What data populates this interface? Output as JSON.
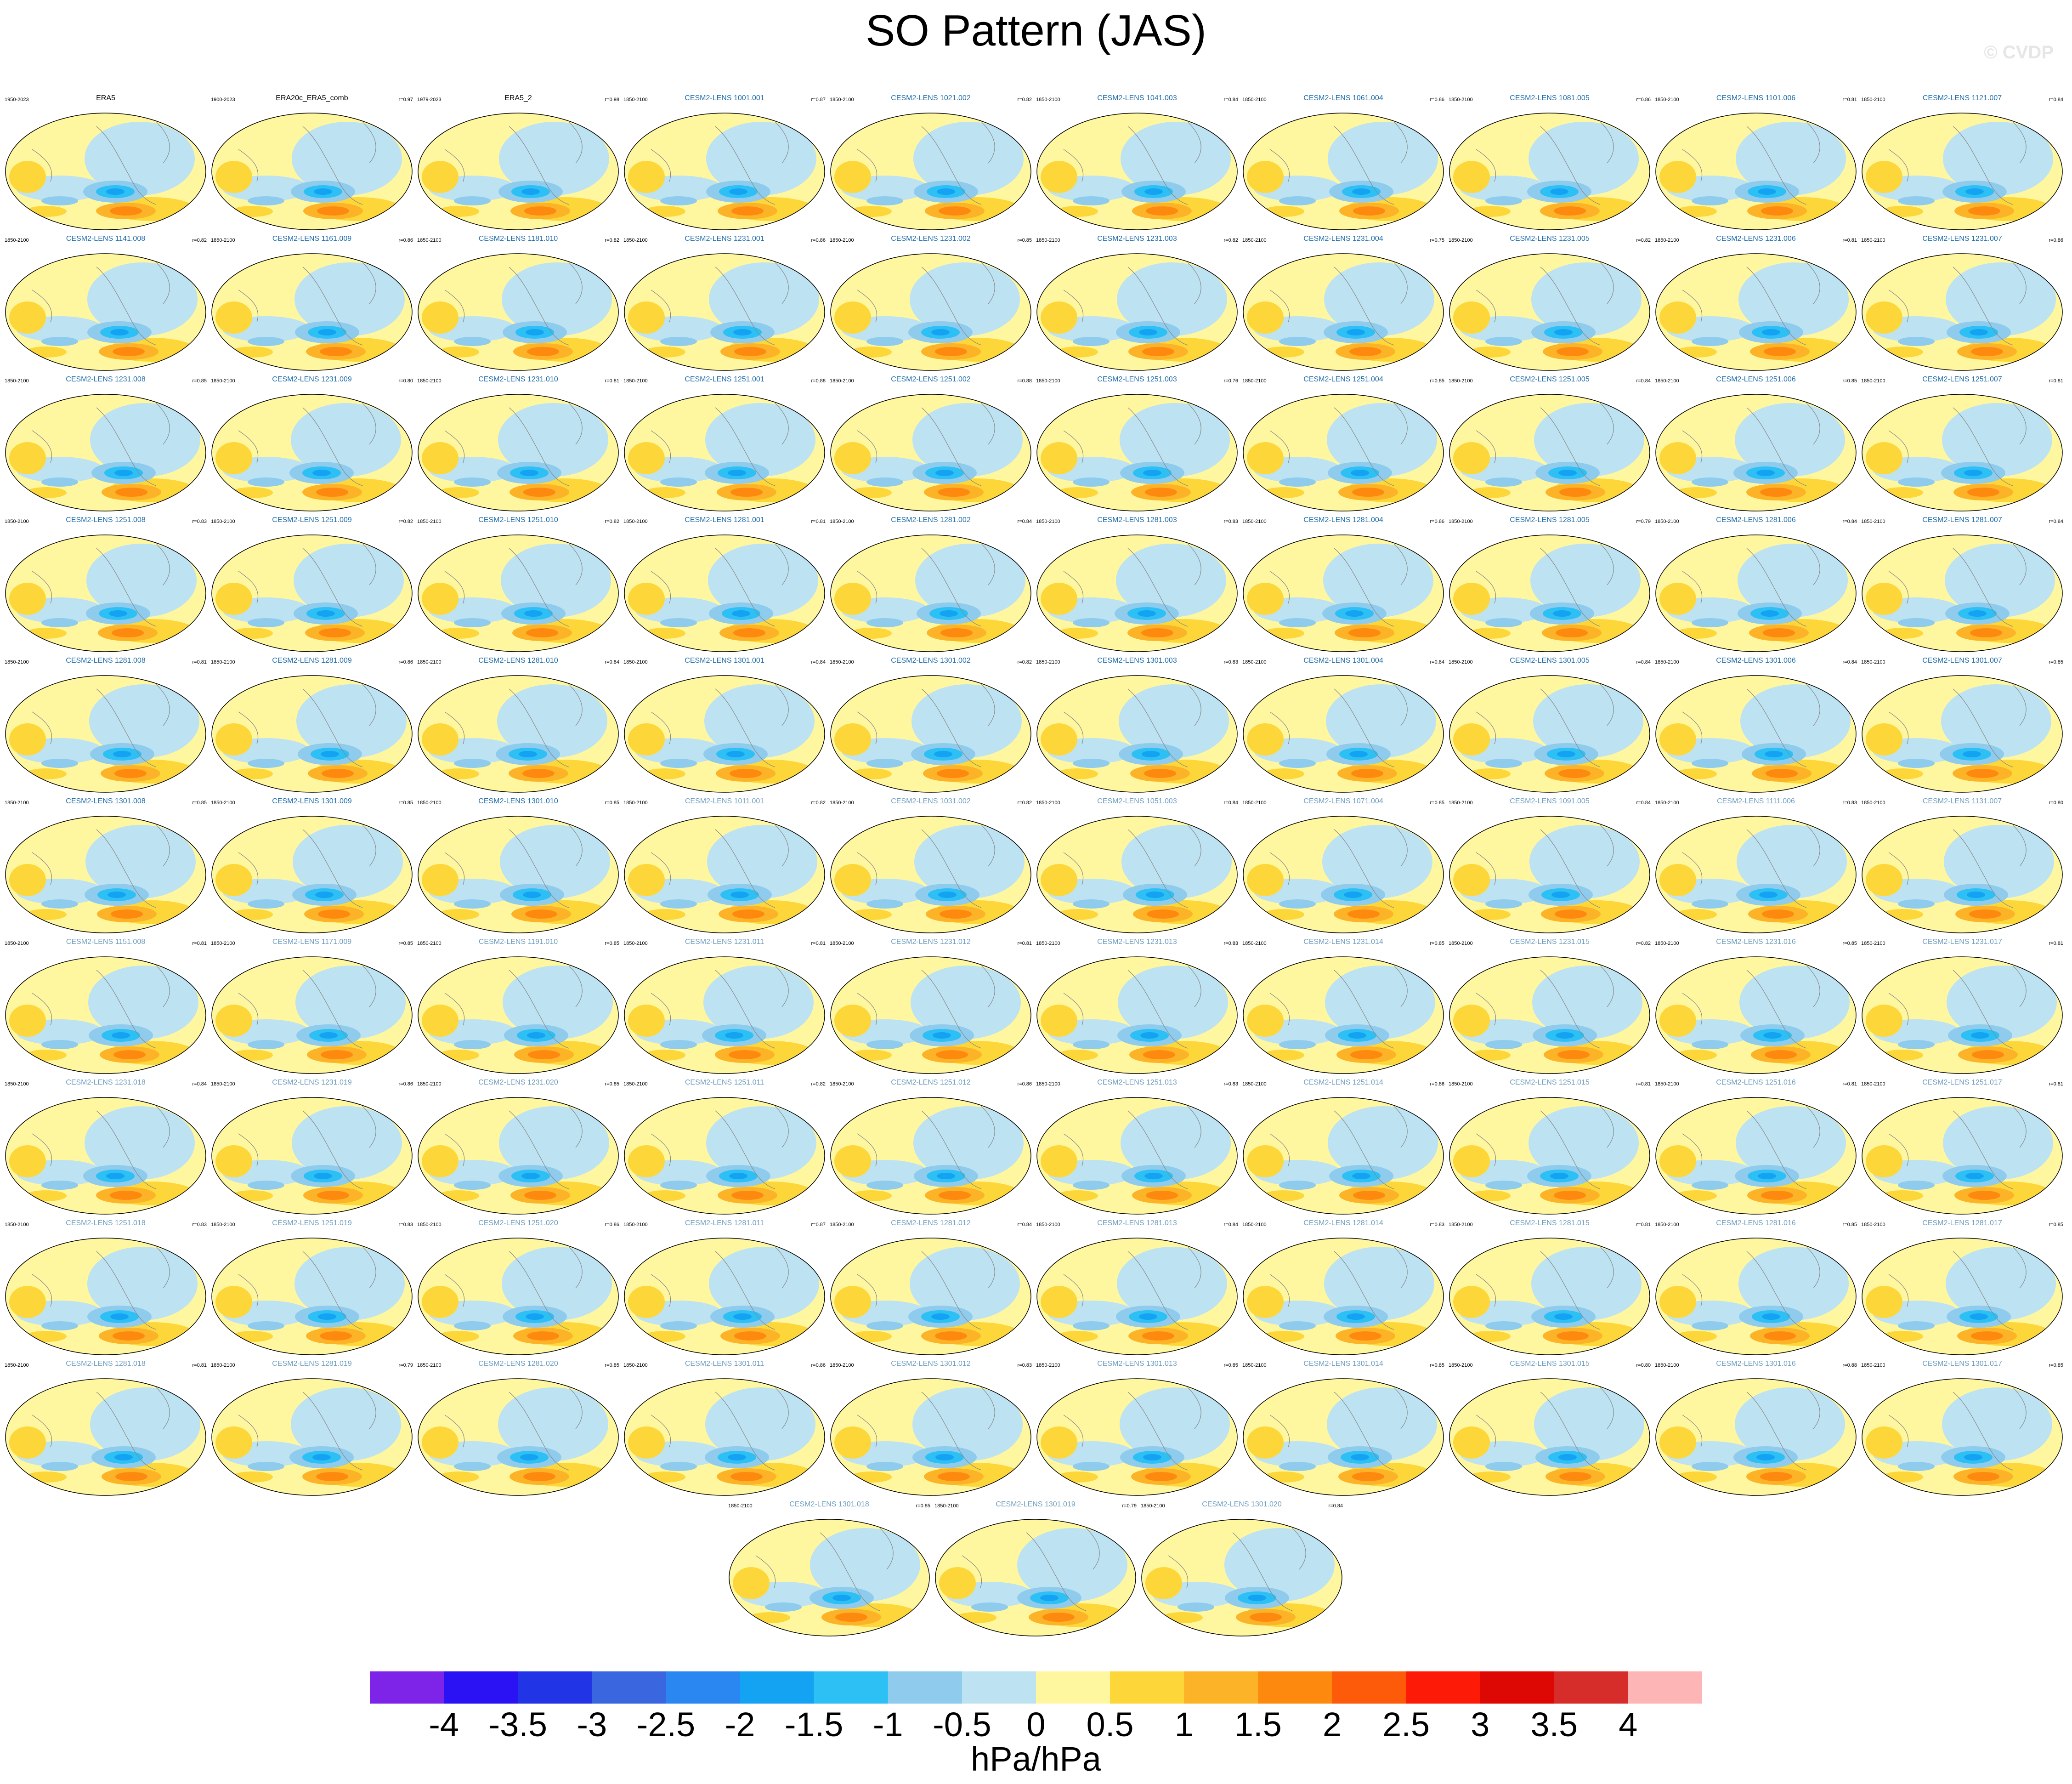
{
  "title": "SO Pattern (JAS)",
  "watermark": "© CVDP",
  "chart_data": {
    "type": "heatmap",
    "variable": "SO Pattern (JAS)",
    "units": "hPa/hPa",
    "panels": [
      {
        "name": "ERA5",
        "period": "1950-2023",
        "r": "",
        "style": "obs"
      },
      {
        "name": "ERA20c_ERA5_comb",
        "period": "1900-2023",
        "r": "r=0.97",
        "style": "obs"
      },
      {
        "name": "ERA5_2",
        "period": "1979-2023",
        "r": "r=0.98",
        "style": "obs"
      },
      {
        "name": "CESM2-LENS 1001.001",
        "period": "1850-2100",
        "r": "r=0.87",
        "style": "ens"
      },
      {
        "name": "CESM2-LENS 1021.002",
        "period": "1850-2100",
        "r": "r=0.82",
        "style": "ens"
      },
      {
        "name": "CESM2-LENS 1041.003",
        "period": "1850-2100",
        "r": "r=0.84",
        "style": "ens"
      },
      {
        "name": "CESM2-LENS 1061.004",
        "period": "1850-2100",
        "r": "r=0.86",
        "style": "ens"
      },
      {
        "name": "CESM2-LENS 1081.005",
        "period": "1850-2100",
        "r": "r=0.86",
        "style": "ens"
      },
      {
        "name": "CESM2-LENS 1101.006",
        "period": "1850-2100",
        "r": "r=0.81",
        "style": "ens"
      },
      {
        "name": "CESM2-LENS 1121.007",
        "period": "1850-2100",
        "r": "r=0.84",
        "style": "ens"
      },
      {
        "name": "CESM2-LENS 1141.008",
        "period": "1850-2100",
        "r": "r=0.82",
        "style": "ens"
      },
      {
        "name": "CESM2-LENS 1161.009",
        "period": "1850-2100",
        "r": "r=0.86",
        "style": "ens"
      },
      {
        "name": "CESM2-LENS 1181.010",
        "period": "1850-2100",
        "r": "r=0.82",
        "style": "ens"
      },
      {
        "name": "CESM2-LENS 1231.001",
        "period": "1850-2100",
        "r": "r=0.86",
        "style": "ens"
      },
      {
        "name": "CESM2-LENS 1231.002",
        "period": "1850-2100",
        "r": "r=0.85",
        "style": "ens"
      },
      {
        "name": "CESM2-LENS 1231.003",
        "period": "1850-2100",
        "r": "r=0.82",
        "style": "ens"
      },
      {
        "name": "CESM2-LENS 1231.004",
        "period": "1850-2100",
        "r": "r=0.75",
        "style": "ens"
      },
      {
        "name": "CESM2-LENS 1231.005",
        "period": "1850-2100",
        "r": "r=0.82",
        "style": "ens"
      },
      {
        "name": "CESM2-LENS 1231.006",
        "period": "1850-2100",
        "r": "r=0.81",
        "style": "ens"
      },
      {
        "name": "CESM2-LENS 1231.007",
        "period": "1850-2100",
        "r": "r=0.86",
        "style": "ens"
      },
      {
        "name": "CESM2-LENS 1231.008",
        "period": "1850-2100",
        "r": "r=0.85",
        "style": "ens"
      },
      {
        "name": "CESM2-LENS 1231.009",
        "period": "1850-2100",
        "r": "r=0.80",
        "style": "ens"
      },
      {
        "name": "CESM2-LENS 1231.010",
        "period": "1850-2100",
        "r": "r=0.81",
        "style": "ens"
      },
      {
        "name": "CESM2-LENS 1251.001",
        "period": "1850-2100",
        "r": "r=0.88",
        "style": "ens"
      },
      {
        "name": "CESM2-LENS 1251.002",
        "period": "1850-2100",
        "r": "r=0.88",
        "style": "ens"
      },
      {
        "name": "CESM2-LENS 1251.003",
        "period": "1850-2100",
        "r": "r=0.76",
        "style": "ens"
      },
      {
        "name": "CESM2-LENS 1251.004",
        "period": "1850-2100",
        "r": "r=0.85",
        "style": "ens"
      },
      {
        "name": "CESM2-LENS 1251.005",
        "period": "1850-2100",
        "r": "r=0.84",
        "style": "ens"
      },
      {
        "name": "CESM2-LENS 1251.006",
        "period": "1850-2100",
        "r": "r=0.85",
        "style": "ens"
      },
      {
        "name": "CESM2-LENS 1251.007",
        "period": "1850-2100",
        "r": "r=0.81",
        "style": "ens"
      },
      {
        "name": "CESM2-LENS 1251.008",
        "period": "1850-2100",
        "r": "r=0.83",
        "style": "ens"
      },
      {
        "name": "CESM2-LENS 1251.009",
        "period": "1850-2100",
        "r": "r=0.82",
        "style": "ens"
      },
      {
        "name": "CESM2-LENS 1251.010",
        "period": "1850-2100",
        "r": "r=0.82",
        "style": "ens"
      },
      {
        "name": "CESM2-LENS 1281.001",
        "period": "1850-2100",
        "r": "r=0.81",
        "style": "ens"
      },
      {
        "name": "CESM2-LENS 1281.002",
        "period": "1850-2100",
        "r": "r=0.84",
        "style": "ens"
      },
      {
        "name": "CESM2-LENS 1281.003",
        "period": "1850-2100",
        "r": "r=0.83",
        "style": "ens"
      },
      {
        "name": "CESM2-LENS 1281.004",
        "period": "1850-2100",
        "r": "r=0.86",
        "style": "ens"
      },
      {
        "name": "CESM2-LENS 1281.005",
        "period": "1850-2100",
        "r": "r=0.79",
        "style": "ens"
      },
      {
        "name": "CESM2-LENS 1281.006",
        "period": "1850-2100",
        "r": "r=0.84",
        "style": "ens"
      },
      {
        "name": "CESM2-LENS 1281.007",
        "period": "1850-2100",
        "r": "r=0.84",
        "style": "ens"
      },
      {
        "name": "CESM2-LENS 1281.008",
        "period": "1850-2100",
        "r": "r=0.81",
        "style": "ens"
      },
      {
        "name": "CESM2-LENS 1281.009",
        "period": "1850-2100",
        "r": "r=0.86",
        "style": "ens"
      },
      {
        "name": "CESM2-LENS 1281.010",
        "period": "1850-2100",
        "r": "r=0.84",
        "style": "ens"
      },
      {
        "name": "CESM2-LENS 1301.001",
        "period": "1850-2100",
        "r": "r=0.84",
        "style": "ens"
      },
      {
        "name": "CESM2-LENS 1301.002",
        "period": "1850-2100",
        "r": "r=0.82",
        "style": "ens"
      },
      {
        "name": "CESM2-LENS 1301.003",
        "period": "1850-2100",
        "r": "r=0.83",
        "style": "ens"
      },
      {
        "name": "CESM2-LENS 1301.004",
        "period": "1850-2100",
        "r": "r=0.84",
        "style": "ens"
      },
      {
        "name": "CESM2-LENS 1301.005",
        "period": "1850-2100",
        "r": "r=0.84",
        "style": "ens"
      },
      {
        "name": "CESM2-LENS 1301.006",
        "period": "1850-2100",
        "r": "r=0.84",
        "style": "ens"
      },
      {
        "name": "CESM2-LENS 1301.007",
        "period": "1850-2100",
        "r": "r=0.85",
        "style": "ens"
      },
      {
        "name": "CESM2-LENS 1301.008",
        "period": "1850-2100",
        "r": "r=0.85",
        "style": "ens"
      },
      {
        "name": "CESM2-LENS 1301.009",
        "period": "1850-2100",
        "r": "r=0.85",
        "style": "ens"
      },
      {
        "name": "CESM2-LENS 1301.010",
        "period": "1850-2100",
        "r": "r=0.85",
        "style": "ens"
      },
      {
        "name": "CESM2-LENS 1011.001",
        "period": "1850-2100",
        "r": "r=0.82",
        "style": "ens2"
      },
      {
        "name": "CESM2-LENS 1031.002",
        "period": "1850-2100",
        "r": "r=0.82",
        "style": "ens2"
      },
      {
        "name": "CESM2-LENS 1051.003",
        "period": "1850-2100",
        "r": "r=0.84",
        "style": "ens2"
      },
      {
        "name": "CESM2-LENS 1071.004",
        "period": "1850-2100",
        "r": "r=0.85",
        "style": "ens2"
      },
      {
        "name": "CESM2-LENS 1091.005",
        "period": "1850-2100",
        "r": "r=0.84",
        "style": "ens2"
      },
      {
        "name": "CESM2-LENS 1111.006",
        "period": "1850-2100",
        "r": "r=0.83",
        "style": "ens2"
      },
      {
        "name": "CESM2-LENS 1131.007",
        "period": "1850-2100",
        "r": "r=0.80",
        "style": "ens2"
      },
      {
        "name": "CESM2-LENS 1151.008",
        "period": "1850-2100",
        "r": "r=0.81",
        "style": "ens2"
      },
      {
        "name": "CESM2-LENS 1171.009",
        "period": "1850-2100",
        "r": "r=0.85",
        "style": "ens2"
      },
      {
        "name": "CESM2-LENS 1191.010",
        "period": "1850-2100",
        "r": "r=0.85",
        "style": "ens2"
      },
      {
        "name": "CESM2-LENS 1231.011",
        "period": "1850-2100",
        "r": "r=0.81",
        "style": "ens2"
      },
      {
        "name": "CESM2-LENS 1231.012",
        "period": "1850-2100",
        "r": "r=0.81",
        "style": "ens2"
      },
      {
        "name": "CESM2-LENS 1231.013",
        "period": "1850-2100",
        "r": "r=0.83",
        "style": "ens2"
      },
      {
        "name": "CESM2-LENS 1231.014",
        "period": "1850-2100",
        "r": "r=0.85",
        "style": "ens2"
      },
      {
        "name": "CESM2-LENS 1231.015",
        "period": "1850-2100",
        "r": "r=0.82",
        "style": "ens2"
      },
      {
        "name": "CESM2-LENS 1231.016",
        "period": "1850-2100",
        "r": "r=0.85",
        "style": "ens2"
      },
      {
        "name": "CESM2-LENS 1231.017",
        "period": "1850-2100",
        "r": "r=0.81",
        "style": "ens2"
      },
      {
        "name": "CESM2-LENS 1231.018",
        "period": "1850-2100",
        "r": "r=0.84",
        "style": "ens2"
      },
      {
        "name": "CESM2-LENS 1231.019",
        "period": "1850-2100",
        "r": "r=0.86",
        "style": "ens2"
      },
      {
        "name": "CESM2-LENS 1231.020",
        "period": "1850-2100",
        "r": "r=0.85",
        "style": "ens2"
      },
      {
        "name": "CESM2-LENS 1251.011",
        "period": "1850-2100",
        "r": "r=0.82",
        "style": "ens2"
      },
      {
        "name": "CESM2-LENS 1251.012",
        "period": "1850-2100",
        "r": "r=0.86",
        "style": "ens2"
      },
      {
        "name": "CESM2-LENS 1251.013",
        "period": "1850-2100",
        "r": "r=0.83",
        "style": "ens2"
      },
      {
        "name": "CESM2-LENS 1251.014",
        "period": "1850-2100",
        "r": "r=0.86",
        "style": "ens2"
      },
      {
        "name": "CESM2-LENS 1251.015",
        "period": "1850-2100",
        "r": "r=0.81",
        "style": "ens2"
      },
      {
        "name": "CESM2-LENS 1251.016",
        "period": "1850-2100",
        "r": "r=0.81",
        "style": "ens2"
      },
      {
        "name": "CESM2-LENS 1251.017",
        "period": "1850-2100",
        "r": "r=0.81",
        "style": "ens2"
      },
      {
        "name": "CESM2-LENS 1251.018",
        "period": "1850-2100",
        "r": "r=0.83",
        "style": "ens2"
      },
      {
        "name": "CESM2-LENS 1251.019",
        "period": "1850-2100",
        "r": "r=0.83",
        "style": "ens2"
      },
      {
        "name": "CESM2-LENS 1251.020",
        "period": "1850-2100",
        "r": "r=0.86",
        "style": "ens2"
      },
      {
        "name": "CESM2-LENS 1281.011",
        "period": "1850-2100",
        "r": "r=0.87",
        "style": "ens2"
      },
      {
        "name": "CESM2-LENS 1281.012",
        "period": "1850-2100",
        "r": "r=0.84",
        "style": "ens2"
      },
      {
        "name": "CESM2-LENS 1281.013",
        "period": "1850-2100",
        "r": "r=0.84",
        "style": "ens2"
      },
      {
        "name": "CESM2-LENS 1281.014",
        "period": "1850-2100",
        "r": "r=0.83",
        "style": "ens2"
      },
      {
        "name": "CESM2-LENS 1281.015",
        "period": "1850-2100",
        "r": "r=0.81",
        "style": "ens2"
      },
      {
        "name": "CESM2-LENS 1281.016",
        "period": "1850-2100",
        "r": "r=0.85",
        "style": "ens2"
      },
      {
        "name": "CESM2-LENS 1281.017",
        "period": "1850-2100",
        "r": "r=0.85",
        "style": "ens2"
      },
      {
        "name": "CESM2-LENS 1281.018",
        "period": "1850-2100",
        "r": "r=0.81",
        "style": "ens2"
      },
      {
        "name": "CESM2-LENS 1281.019",
        "period": "1850-2100",
        "r": "r=0.79",
        "style": "ens2"
      },
      {
        "name": "CESM2-LENS 1281.020",
        "period": "1850-2100",
        "r": "r=0.85",
        "style": "ens2"
      },
      {
        "name": "CESM2-LENS 1301.011",
        "period": "1850-2100",
        "r": "r=0.86",
        "style": "ens2"
      },
      {
        "name": "CESM2-LENS 1301.012",
        "period": "1850-2100",
        "r": "r=0.83",
        "style": "ens2"
      },
      {
        "name": "CESM2-LENS 1301.013",
        "period": "1850-2100",
        "r": "r=0.85",
        "style": "ens2"
      },
      {
        "name": "CESM2-LENS 1301.014",
        "period": "1850-2100",
        "r": "r=0.85",
        "style": "ens2"
      },
      {
        "name": "CESM2-LENS 1301.015",
        "period": "1850-2100",
        "r": "r=0.80",
        "style": "ens2"
      },
      {
        "name": "CESM2-LENS 1301.016",
        "period": "1850-2100",
        "r": "r=0.88",
        "style": "ens2"
      },
      {
        "name": "CESM2-LENS 1301.017",
        "period": "1850-2100",
        "r": "r=0.85",
        "style": "ens2"
      },
      {
        "name": "CESM2-LENS 1301.018",
        "period": "1850-2100",
        "r": "r=0.85",
        "style": "ens2"
      },
      {
        "name": "CESM2-LENS 1301.019",
        "period": "1850-2100",
        "r": "r=0.79",
        "style": "ens2"
      },
      {
        "name": "CESM2-LENS 1301.020",
        "period": "1850-2100",
        "r": "r=0.84",
        "style": "ens2"
      }
    ],
    "colorbar": {
      "levels": [
        "-4",
        "-3.5",
        "-3",
        "-2.5",
        "-2",
        "-1.5",
        "-1",
        "-0.5",
        "0",
        "0.5",
        "1",
        "1.5",
        "2",
        "2.5",
        "3",
        "3.5",
        "4"
      ],
      "colors": [
        "#7d24e8",
        "#2a12f5",
        "#2134e6",
        "#3a66df",
        "#2a86f0",
        "#14a2f2",
        "#2cc0f5",
        "#8ecbec",
        "#bde2f2",
        "#fff7a0",
        "#fdd73a",
        "#fdb327",
        "#fd8a0f",
        "#fd5a0a",
        "#fd1a06",
        "#dd0704",
        "#d62d2a",
        "#fdb6b5"
      ],
      "label": "hPa/hPa"
    }
  }
}
